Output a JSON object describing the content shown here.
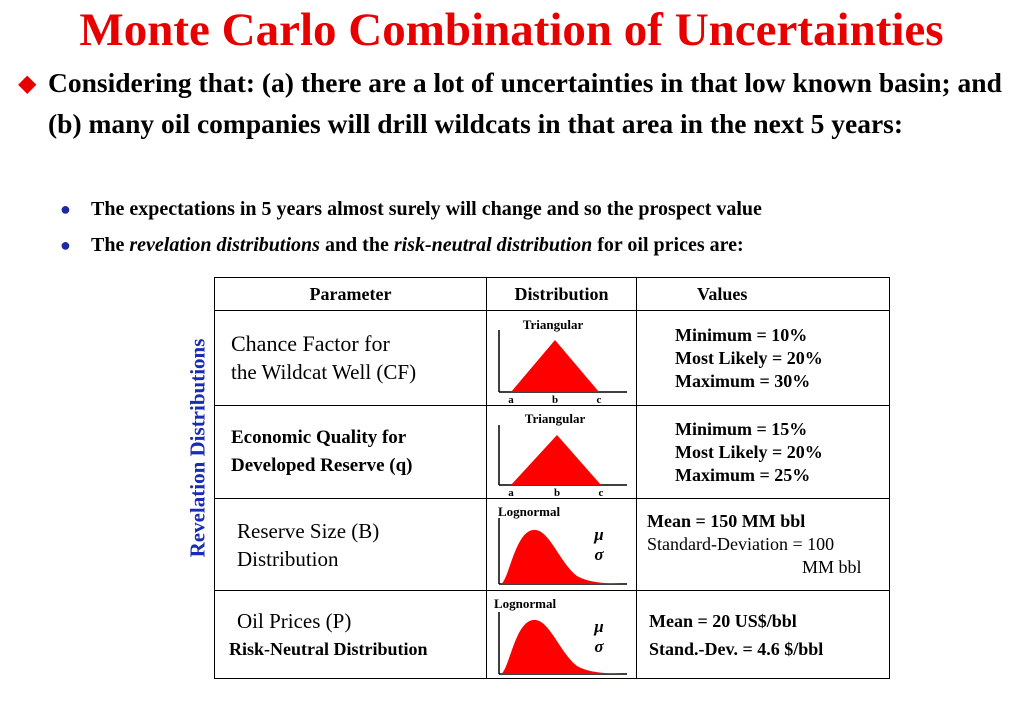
{
  "title": "Monte Carlo Combination of Uncertainties",
  "main_bullet": "Considering that: (a) there are a lot of uncertainties in that low known basin; and (b) many oil companies will drill wildcats in that area in the next 5 years:",
  "sub_bullets": [
    {
      "text": "The expectations in 5 years almost surely will change and so the prospect value"
    },
    {
      "pre": "The ",
      "em1": "revelation distributions",
      "mid": " and the ",
      "em2": "risk-neutral distribution",
      "post": " for oil prices are:"
    }
  ],
  "side_label": "Revelation Distributions",
  "table": {
    "headers": [
      "Parameter",
      "Distribution",
      "Values"
    ],
    "rows": [
      {
        "param": [
          "Chance Factor for",
          "the Wildcat Well (CF)"
        ],
        "dist": "Triangular",
        "tick_labels": [
          "a",
          "b",
          "c"
        ],
        "values": [
          "Minimum = 10%",
          "Most Likely = 20%",
          "Maximum = 30%"
        ]
      },
      {
        "param": [
          "Economic Quality for",
          "Developed Reserve (q)"
        ],
        "dist": "Triangular",
        "tick_labels": [
          "a",
          "b",
          "c"
        ],
        "values": [
          "Minimum = 15%",
          "Most Likely = 20%",
          "Maximum = 25%"
        ]
      },
      {
        "param": [
          "Reserve Size (B)",
          "Distribution"
        ],
        "dist": "Lognormal",
        "symbols": [
          "μ",
          "σ"
        ],
        "values": [
          "Mean = 150 MM bbl",
          "Standard-Deviation = 100",
          "MM bbl"
        ]
      },
      {
        "param": [
          "Oil Prices (P)",
          "Risk-Neutral Distribution"
        ],
        "dist": "Lognormal",
        "symbols": [
          "μ",
          "σ"
        ],
        "values": [
          "Mean = 20 US$/bbl",
          "Stand.-Dev. = 4.6 $/bbl"
        ]
      }
    ]
  },
  "colors": {
    "title": "#e80000",
    "bullet": "#e80000",
    "sub_bullet": "#1c2ba0",
    "side_label": "#1a2bb5",
    "fill": "#ff0000"
  },
  "icons": {
    "main_bullet": "diamond-icon",
    "sub_bullet": "dot-icon"
  }
}
